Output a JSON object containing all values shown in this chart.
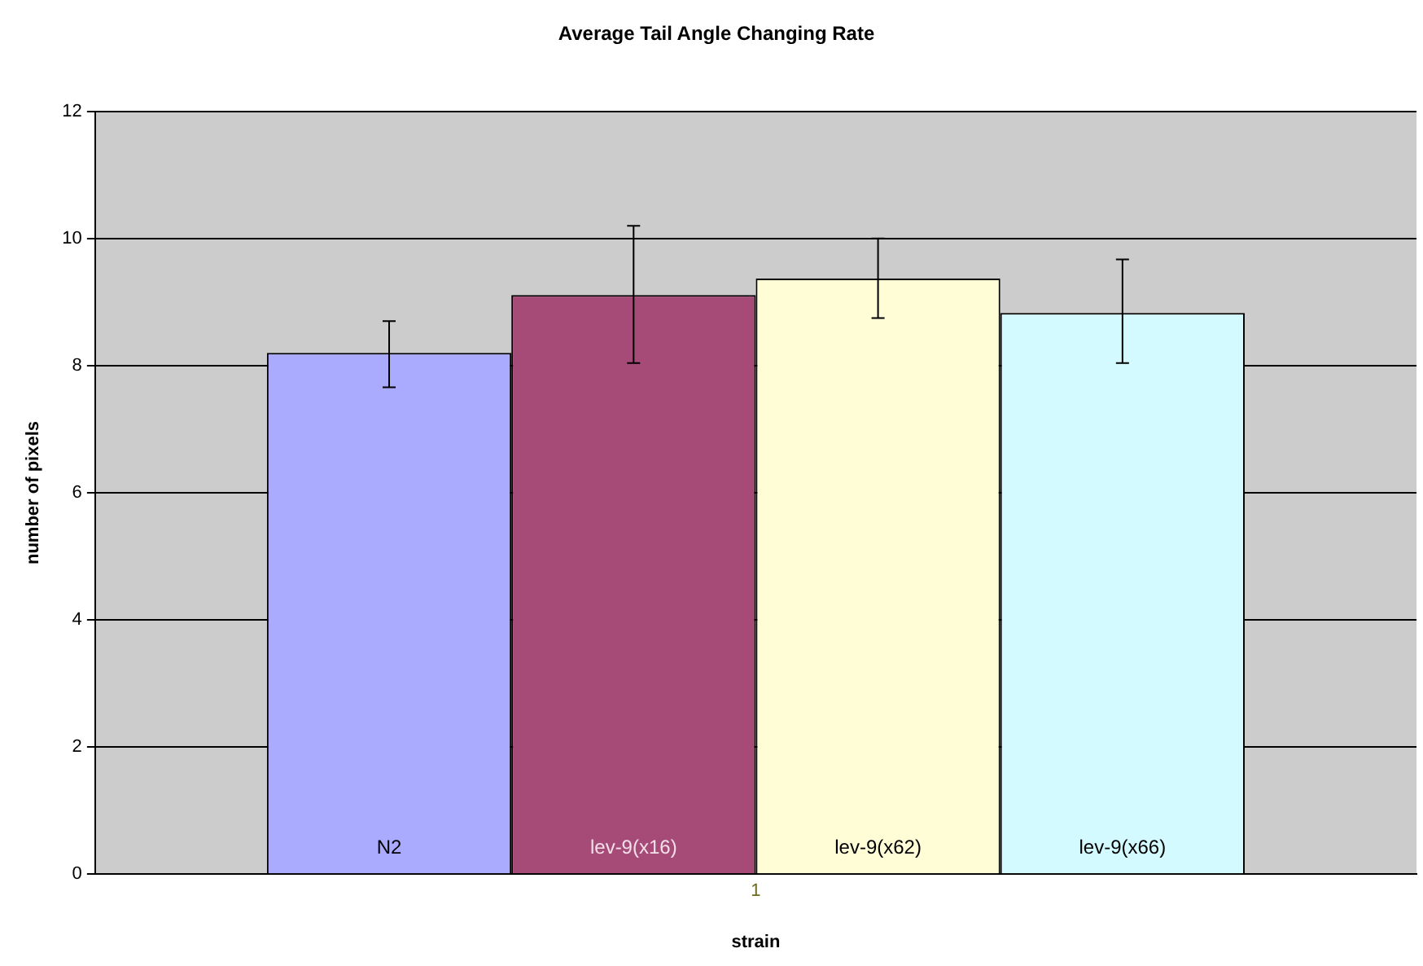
{
  "chart_data": {
    "type": "bar",
    "title": "Average Tail Angle Changing Rate",
    "xlabel": "strain",
    "ylabel": "number of pixels",
    "categories": [
      "1"
    ],
    "series": [
      {
        "name": "N2",
        "color": "#aaaaff",
        "values": [
          8.2
        ],
        "errors": [
          [
            7.66,
            8.7
          ]
        ]
      },
      {
        "name": "lev-9(x16)",
        "color": "#a64a78",
        "values": [
          9.11
        ],
        "errors": [
          [
            8.04,
            10.2
          ]
        ]
      },
      {
        "name": "lev-9(x62)",
        "color": "#fefdd6",
        "values": [
          9.37
        ],
        "errors": [
          [
            8.75,
            10.0
          ]
        ]
      },
      {
        "name": "lev-9(x66)",
        "color": "#d3fbff",
        "values": [
          8.83
        ],
        "errors": [
          [
            8.04,
            9.67
          ]
        ]
      }
    ],
    "ylim": [
      0,
      12
    ],
    "yticks": [
      0,
      2,
      4,
      6,
      8,
      10,
      12
    ],
    "grid": "y",
    "legend": false
  }
}
